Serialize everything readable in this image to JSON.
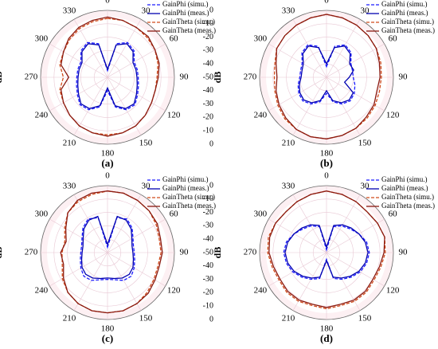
{
  "chart_data": [
    {
      "type": "polar",
      "panel_label": "(a)",
      "y_label": "dB",
      "rlim": [
        -50,
        0
      ],
      "rticks": [
        0,
        -10,
        -20,
        -30,
        -40,
        -50
      ],
      "thetaticks": [
        0,
        30,
        60,
        90,
        120,
        150,
        180,
        210,
        240,
        270,
        300,
        330
      ],
      "theta": [
        0,
        15,
        30,
        45,
        60,
        75,
        90,
        105,
        120,
        135,
        150,
        165,
        180,
        195,
        210,
        225,
        240,
        255,
        270,
        285,
        300,
        315,
        330,
        345
      ],
      "series": [
        {
          "name": "GainPhi (simu.)",
          "color": "#1a1aff",
          "dashed": true,
          "values": [
            -45,
            -24,
            -20,
            -22,
            -27,
            -27,
            -27,
            -26,
            -24,
            -21,
            -22,
            -27,
            -40,
            -27,
            -22,
            -21,
            -24,
            -26,
            -27,
            -27,
            -27,
            -22,
            -20,
            -24
          ]
        },
        {
          "name": "GainPhi (meas.)",
          "color": "#0000b0",
          "dashed": false,
          "values": [
            -44,
            -25,
            -21,
            -23,
            -28,
            -28,
            -28,
            -27,
            -25,
            -22,
            -23,
            -28,
            -42,
            -28,
            -23,
            -22,
            -25,
            -27,
            -28,
            -28,
            -28,
            -23,
            -21,
            -25
          ]
        },
        {
          "name": "GainTheta (simu.)",
          "color": "#d04a1a",
          "dashed": true,
          "values": [
            -6,
            -6,
            -7,
            -8,
            -9,
            -11,
            -13,
            -13,
            -12,
            -10,
            -8,
            -7,
            -7,
            -7,
            -8,
            -10,
            -12,
            -13,
            -17,
            -13,
            -12,
            -10,
            -8,
            -7
          ]
        },
        {
          "name": "GainTheta (meas.)",
          "color": "#8b1a10",
          "dashed": false,
          "values": [
            -5,
            -6,
            -7,
            -7,
            -9,
            -10,
            -12,
            -13,
            -12,
            -10,
            -8,
            -7,
            -6,
            -7,
            -8,
            -10,
            -12,
            -14,
            -21,
            -14,
            -12,
            -9,
            -7,
            -6
          ]
        }
      ]
    },
    {
      "type": "polar",
      "panel_label": "(b)",
      "y_label": "dB",
      "rlim": [
        -50,
        0
      ],
      "rticks": [
        0,
        -10,
        -20,
        -30,
        -40,
        -50
      ],
      "thetaticks": [
        0,
        30,
        60,
        90,
        120,
        150,
        180,
        210,
        240,
        270,
        300,
        330
      ],
      "theta": [
        0,
        15,
        30,
        45,
        60,
        75,
        90,
        105,
        120,
        135,
        150,
        165,
        180,
        195,
        210,
        225,
        240,
        255,
        270,
        285,
        300,
        315,
        330,
        345
      ],
      "series": [
        {
          "name": "GainPhi (simu.)",
          "color": "#1a1aff",
          "dashed": true,
          "values": [
            -42,
            -26,
            -22,
            -24,
            -29,
            -30,
            -30,
            -28,
            -26,
            -25,
            -27,
            -31,
            -38,
            -31,
            -27,
            -25,
            -26,
            -28,
            -30,
            -30,
            -29,
            -24,
            -22,
            -26
          ]
        },
        {
          "name": "GainPhi (meas.)",
          "color": "#0000b0",
          "dashed": false,
          "values": [
            -40,
            -27,
            -23,
            -25,
            -30,
            -29,
            -33,
            -36,
            -27,
            -26,
            -28,
            -32,
            -40,
            -32,
            -28,
            -26,
            -27,
            -29,
            -31,
            -31,
            -30,
            -25,
            -23,
            -27
          ]
        },
        {
          "name": "GainTheta (simu.)",
          "color": "#d04a1a",
          "dashed": true,
          "values": [
            -3,
            -4,
            -5,
            -6,
            -7,
            -8,
            -9,
            -9,
            -8,
            -7,
            -6,
            -5,
            -4,
            -4,
            -5,
            -6,
            -8,
            -10,
            -11,
            -10,
            -7,
            -6,
            -5,
            -4
          ]
        },
        {
          "name": "GainTheta (meas.)",
          "color": "#8b1a10",
          "dashed": false,
          "values": [
            -3,
            -4,
            -5,
            -6,
            -7,
            -9,
            -10,
            -11,
            -9,
            -8,
            -6,
            -5,
            -4,
            -4,
            -5,
            -7,
            -9,
            -11,
            -13,
            -11,
            -7,
            -6,
            -5,
            -4
          ]
        }
      ]
    },
    {
      "type": "polar",
      "panel_label": "(c)",
      "y_label": "dB",
      "rlim": [
        -50,
        0
      ],
      "rticks": [
        0,
        -10,
        -20,
        -30,
        -40,
        -50
      ],
      "thetaticks": [
        0,
        30,
        60,
        90,
        120,
        150,
        180,
        210,
        240,
        270,
        300,
        330
      ],
      "theta": [
        0,
        15,
        30,
        45,
        60,
        75,
        90,
        105,
        120,
        135,
        150,
        165,
        180,
        195,
        210,
        225,
        240,
        255,
        270,
        285,
        300,
        315,
        330,
        345
      ],
      "series": [
        {
          "name": "GainPhi (simu.)",
          "color": "#1a1aff",
          "dashed": true,
          "values": [
            -46,
            -23,
            -21,
            -24,
            -28,
            -30,
            -30,
            -29,
            -27,
            -25,
            -26,
            -29,
            -30,
            -29,
            -26,
            -25,
            -27,
            -29,
            -30,
            -30,
            -28,
            -24,
            -21,
            -23
          ]
        },
        {
          "name": "GainPhi (meas.)",
          "color": "#0000b0",
          "dashed": false,
          "values": [
            -44,
            -22,
            -22,
            -25,
            -29,
            -31,
            -31,
            -30,
            -28,
            -27,
            -28,
            -30,
            -31,
            -30,
            -28,
            -27,
            -28,
            -30,
            -31,
            -31,
            -29,
            -25,
            -22,
            -22
          ]
        },
        {
          "name": "GainTheta (simu.)",
          "color": "#d04a1a",
          "dashed": true,
          "values": [
            -4,
            -4,
            -5,
            -6,
            -8,
            -10,
            -10,
            -11,
            -10,
            -8,
            -6,
            -5,
            -5,
            -5,
            -6,
            -8,
            -11,
            -15,
            -16,
            -17,
            -13,
            -8,
            -6,
            -5
          ]
        },
        {
          "name": "GainTheta (meas.)",
          "color": "#8b1a10",
          "dashed": false,
          "values": [
            -4,
            -4,
            -5,
            -6,
            -7,
            -9,
            -9,
            -10,
            -9,
            -7,
            -6,
            -5,
            -5,
            -5,
            -6,
            -8,
            -12,
            -16,
            -15,
            -18,
            -14,
            -8,
            -5,
            -4
          ]
        }
      ]
    },
    {
      "type": "polar",
      "panel_label": "(d)",
      "y_label": "dB",
      "rlim": [
        -50,
        0
      ],
      "rticks": [
        0,
        -10,
        -20,
        -30,
        -40,
        -50
      ],
      "thetaticks": [
        0,
        30,
        60,
        90,
        120,
        150,
        180,
        210,
        240,
        270,
        300,
        330
      ],
      "theta": [
        0,
        15,
        30,
        45,
        60,
        75,
        90,
        105,
        120,
        135,
        150,
        165,
        180,
        195,
        210,
        225,
        240,
        255,
        270,
        285,
        300,
        315,
        330,
        345
      ],
      "series": [
        {
          "name": "GainPhi (simu.)",
          "color": "#1a1aff",
          "dashed": true,
          "values": [
            -48,
            -30,
            -27,
            -25,
            -22,
            -19,
            -18,
            -19,
            -21,
            -24,
            -27,
            -30,
            -45,
            -30,
            -27,
            -24,
            -21,
            -19,
            -18,
            -19,
            -22,
            -25,
            -27,
            -30
          ]
        },
        {
          "name": "GainPhi (meas.)",
          "color": "#0000b0",
          "dashed": false,
          "values": [
            -46,
            -29,
            -26,
            -24,
            -22,
            -20,
            -19,
            -20,
            -22,
            -25,
            -28,
            -31,
            -44,
            -31,
            -28,
            -25,
            -22,
            -20,
            -19,
            -20,
            -22,
            -24,
            -26,
            -29
          ]
        },
        {
          "name": "GainTheta (simu.)",
          "color": "#d04a1a",
          "dashed": true,
          "values": [
            -4,
            -5,
            -6,
            -7,
            -6,
            -5,
            -6,
            -8,
            -9,
            -8,
            -8,
            -9,
            -8,
            -9,
            -8,
            -8,
            -9,
            -8,
            -6,
            -5,
            -6,
            -7,
            -6,
            -5
          ]
        },
        {
          "name": "GainTheta (meas.)",
          "color": "#8b1a10",
          "dashed": false,
          "values": [
            -4,
            -5,
            -6,
            -7,
            -6,
            -5,
            -7,
            -9,
            -10,
            -9,
            -9,
            -10,
            -9,
            -10,
            -9,
            -9,
            -10,
            -9,
            -7,
            -6,
            -6,
            -7,
            -6,
            -5
          ]
        }
      ]
    }
  ]
}
